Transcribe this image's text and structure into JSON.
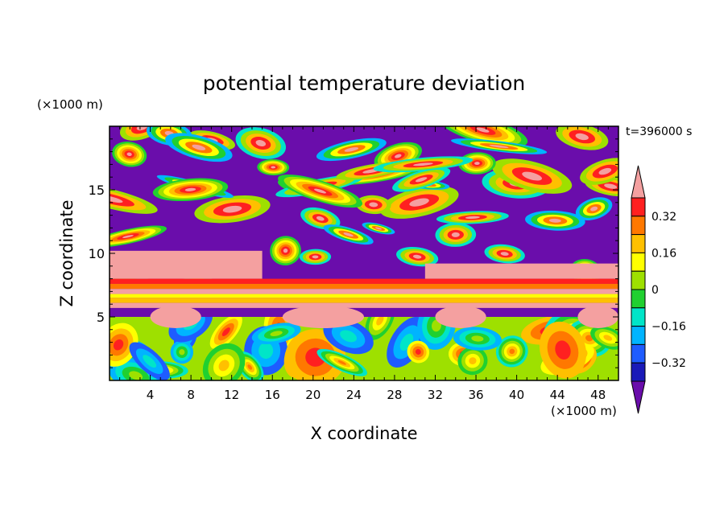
{
  "chart_data": {
    "type": "heatmap",
    "title": "potential temperature deviation",
    "xlabel": "X coordinate",
    "ylabel": "Z coordinate",
    "x_unit": "(×1000 m)",
    "y_unit": "(×1000 m)",
    "time_label": "t=396000 s",
    "xlim": [
      0,
      50
    ],
    "ylim": [
      0,
      20
    ],
    "x_ticks": [
      "4",
      "8",
      "12",
      "16",
      "20",
      "24",
      "28",
      "32",
      "36",
      "40",
      "44",
      "48"
    ],
    "y_ticks": [
      "5",
      "10",
      "15"
    ],
    "colorbar": {
      "labels": [
        "0.32",
        "0.16",
        "0",
        "−0.16",
        "−0.32"
      ],
      "levels": [
        -0.4,
        -0.32,
        -0.24,
        -0.16,
        -0.08,
        0,
        0.08,
        0.16,
        0.24,
        0.32,
        0.4
      ],
      "colors": [
        "#6a0dab",
        "#1a1ab8",
        "#1e5cff",
        "#00b4ff",
        "#00e5c8",
        "#20d030",
        "#9ee000",
        "#ffff00",
        "#ffc000",
        "#ff7800",
        "#ff2020",
        "#f4a0a0"
      ]
    }
  }
}
